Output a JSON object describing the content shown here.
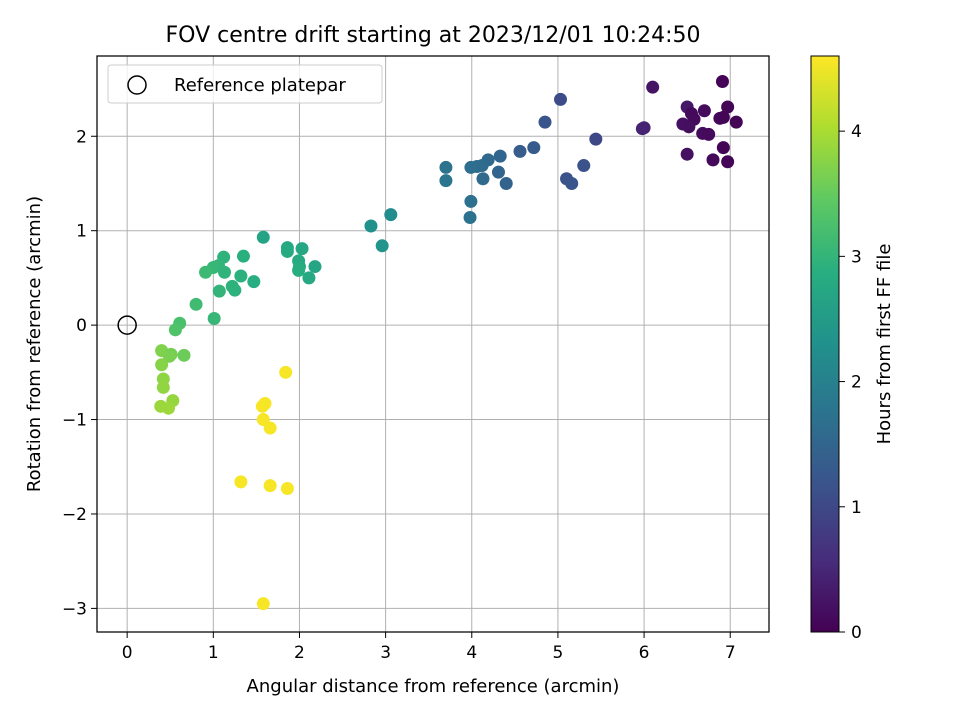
{
  "chart_data": {
    "type": "scatter",
    "title": "FOV centre drift starting at 2023/12/01 10:24:50",
    "xlabel": "Angular distance from reference (arcmin)",
    "ylabel": "Rotation from reference (arcmin)",
    "xlim": [
      -0.35,
      7.45
    ],
    "ylim": [
      -3.25,
      2.85
    ],
    "x_ticks": [
      0,
      1,
      2,
      3,
      4,
      5,
      6,
      7
    ],
    "x_tick_labels": [
      "0",
      "1",
      "2",
      "3",
      "4",
      "5",
      "6",
      "7"
    ],
    "y_ticks": [
      -3,
      -2,
      -1,
      0,
      1,
      2
    ],
    "y_tick_labels": [
      "−3",
      "−2",
      "−1",
      "0",
      "1",
      "2"
    ],
    "grid": true,
    "legend": {
      "placement": "upper-left",
      "entries": [
        "Reference platepar"
      ]
    },
    "reference_point": {
      "x": 0,
      "y": 0
    },
    "colorbar": {
      "label": "Hours from first FF file",
      "min": 0,
      "max": 4.6,
      "ticks": [
        0,
        1,
        2,
        3,
        4
      ],
      "tick_labels": [
        "0",
        "1",
        "2",
        "3",
        "4"
      ],
      "colormap": "viridis"
    },
    "series": [
      {
        "name": "",
        "points": [
          {
            "x": 6.91,
            "y": 2.58,
            "t": 0.03
          },
          {
            "x": 6.1,
            "y": 2.52,
            "t": 0.25
          },
          {
            "x": 6.5,
            "y": 2.31,
            "t": 0.3
          },
          {
            "x": 6.97,
            "y": 2.31,
            "t": 0.05
          },
          {
            "x": 6.55,
            "y": 2.24,
            "t": 0.1
          },
          {
            "x": 6.7,
            "y": 2.27,
            "t": 0.15
          },
          {
            "x": 6.58,
            "y": 2.18,
            "t": 0.12
          },
          {
            "x": 6.88,
            "y": 2.19,
            "t": 0.08
          },
          {
            "x": 6.92,
            "y": 2.2,
            "t": 0.05
          },
          {
            "x": 6.45,
            "y": 2.13,
            "t": 0.2
          },
          {
            "x": 6.52,
            "y": 2.1,
            "t": 0.18
          },
          {
            "x": 7.07,
            "y": 2.15,
            "t": 0.05
          },
          {
            "x": 6.68,
            "y": 2.03,
            "t": 0.15
          },
          {
            "x": 6.75,
            "y": 2.02,
            "t": 0.12
          },
          {
            "x": 6.5,
            "y": 1.81,
            "t": 0.2
          },
          {
            "x": 6.8,
            "y": 1.75,
            "t": 0.1
          },
          {
            "x": 6.92,
            "y": 1.88,
            "t": 0.05
          },
          {
            "x": 6.97,
            "y": 1.73,
            "t": 0.05
          },
          {
            "x": 6.0,
            "y": 2.09,
            "t": 0.4
          },
          {
            "x": 5.98,
            "y": 2.08,
            "t": 0.45
          },
          {
            "x": 5.03,
            "y": 2.39,
            "t": 1.05
          },
          {
            "x": 4.85,
            "y": 2.15,
            "t": 1.2
          },
          {
            "x": 5.44,
            "y": 1.97,
            "t": 1.0
          },
          {
            "x": 4.56,
            "y": 1.84,
            "t": 1.35
          },
          {
            "x": 4.72,
            "y": 1.88,
            "t": 1.3
          },
          {
            "x": 5.3,
            "y": 1.69,
            "t": 1.15
          },
          {
            "x": 5.1,
            "y": 1.55,
            "t": 1.15
          },
          {
            "x": 5.16,
            "y": 1.5,
            "t": 1.2
          },
          {
            "x": 4.33,
            "y": 1.79,
            "t": 1.5
          },
          {
            "x": 4.19,
            "y": 1.75,
            "t": 1.55
          },
          {
            "x": 4.12,
            "y": 1.69,
            "t": 1.6
          },
          {
            "x": 4.06,
            "y": 1.68,
            "t": 1.62
          },
          {
            "x": 3.99,
            "y": 1.67,
            "t": 1.65
          },
          {
            "x": 4.31,
            "y": 1.62,
            "t": 1.48
          },
          {
            "x": 4.13,
            "y": 1.55,
            "t": 1.58
          },
          {
            "x": 4.4,
            "y": 1.5,
            "t": 1.45
          },
          {
            "x": 3.7,
            "y": 1.67,
            "t": 1.75
          },
          {
            "x": 3.7,
            "y": 1.53,
            "t": 1.78
          },
          {
            "x": 3.99,
            "y": 1.31,
            "t": 1.7
          },
          {
            "x": 3.98,
            "y": 1.14,
            "t": 1.72
          },
          {
            "x": 3.06,
            "y": 1.17,
            "t": 2.2
          },
          {
            "x": 2.83,
            "y": 1.05,
            "t": 2.3
          },
          {
            "x": 2.96,
            "y": 0.84,
            "t": 2.35
          },
          {
            "x": 1.58,
            "y": 0.93,
            "t": 2.65
          },
          {
            "x": 1.86,
            "y": 0.82,
            "t": 2.75
          },
          {
            "x": 1.86,
            "y": 0.78,
            "t": 2.78
          },
          {
            "x": 2.03,
            "y": 0.81,
            "t": 2.72
          },
          {
            "x": 1.99,
            "y": 0.68,
            "t": 2.8
          },
          {
            "x": 2.0,
            "y": 0.62,
            "t": 2.82
          },
          {
            "x": 2.18,
            "y": 0.62,
            "t": 2.7
          },
          {
            "x": 1.99,
            "y": 0.58,
            "t": 2.85
          },
          {
            "x": 2.11,
            "y": 0.5,
            "t": 2.75
          },
          {
            "x": 1.12,
            "y": 0.72,
            "t": 2.95
          },
          {
            "x": 1.35,
            "y": 0.73,
            "t": 2.9
          },
          {
            "x": 1.06,
            "y": 0.63,
            "t": 3.0
          },
          {
            "x": 1.0,
            "y": 0.61,
            "t": 3.05
          },
          {
            "x": 0.91,
            "y": 0.56,
            "t": 3.1
          },
          {
            "x": 1.13,
            "y": 0.56,
            "t": 2.98
          },
          {
            "x": 1.32,
            "y": 0.52,
            "t": 2.92
          },
          {
            "x": 1.47,
            "y": 0.46,
            "t": 2.88
          },
          {
            "x": 1.22,
            "y": 0.41,
            "t": 2.95
          },
          {
            "x": 1.07,
            "y": 0.36,
            "t": 3.0
          },
          {
            "x": 1.25,
            "y": 0.37,
            "t": 2.93
          },
          {
            "x": 0.8,
            "y": 0.22,
            "t": 3.15
          },
          {
            "x": 1.01,
            "y": 0.07,
            "t": 3.05
          },
          {
            "x": 0.61,
            "y": 0.02,
            "t": 3.25
          },
          {
            "x": 0.56,
            "y": -0.05,
            "t": 3.3
          },
          {
            "x": 0.4,
            "y": -0.27,
            "t": 3.7
          },
          {
            "x": 0.51,
            "y": -0.31,
            "t": 3.6
          },
          {
            "x": 0.49,
            "y": -0.33,
            "t": 3.65
          },
          {
            "x": 0.66,
            "y": -0.32,
            "t": 3.55
          },
          {
            "x": 0.4,
            "y": -0.42,
            "t": 3.75
          },
          {
            "x": 0.42,
            "y": -0.57,
            "t": 3.8
          },
          {
            "x": 0.42,
            "y": -0.66,
            "t": 3.82
          },
          {
            "x": 0.53,
            "y": -0.8,
            "t": 3.85
          },
          {
            "x": 0.39,
            "y": -0.86,
            "t": 3.88
          },
          {
            "x": 0.48,
            "y": -0.88,
            "t": 3.9
          },
          {
            "x": 1.84,
            "y": -0.5,
            "t": 4.55
          },
          {
            "x": 1.6,
            "y": -0.83,
            "t": 4.55
          },
          {
            "x": 1.57,
            "y": -0.86,
            "t": 4.55
          },
          {
            "x": 1.58,
            "y": -1.0,
            "t": 4.55
          },
          {
            "x": 1.66,
            "y": -1.09,
            "t": 4.55
          },
          {
            "x": 1.32,
            "y": -1.66,
            "t": 4.55
          },
          {
            "x": 1.66,
            "y": -1.7,
            "t": 4.55
          },
          {
            "x": 1.86,
            "y": -1.73,
            "t": 4.55
          },
          {
            "x": 1.58,
            "y": -2.95,
            "t": 4.55
          }
        ]
      }
    ]
  }
}
